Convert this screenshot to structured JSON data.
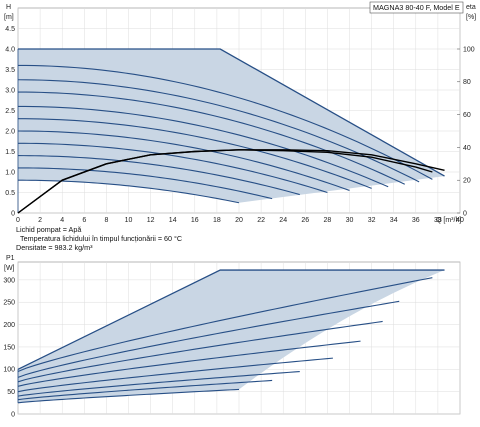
{
  "model_box": "MAGNA3 80-40 F, Model E",
  "notes": [
    "Lichid pompat = Apă",
    "Temperatura lichidului în timpul funcționării = 60 °C",
    "Densitate = 983.2  kg/m³"
  ],
  "chart_data": [
    {
      "type": "line",
      "title": "",
      "xlabel": "Q [m³/h]",
      "ylabel_top": "H",
      "ylabel_bottom": "[m]",
      "y2label_top": "eta",
      "y2label_bottom": "[%]",
      "xlim": [
        0,
        40
      ],
      "ylim": [
        0,
        5
      ],
      "y2lim": [
        0,
        125
      ],
      "x_ticks": [
        "0",
        "2",
        "4",
        "6",
        "8",
        "10",
        "12",
        "14",
        "16",
        "18",
        "20",
        "22",
        "24",
        "26",
        "28",
        "30",
        "32",
        "34",
        "36",
        "38",
        "40"
      ],
      "y_ticks": [
        "0",
        "0.5",
        "1.0",
        "1.5",
        "2.0",
        "2.5",
        "3.0",
        "3.5",
        "4.0",
        "4.5"
      ],
      "y2_ticks": [
        "0",
        "20",
        "40",
        "60",
        "80",
        "100"
      ],
      "grid": true,
      "operating_region": {
        "max_curve_q": [
          0,
          18.3,
          38.6
        ],
        "max_curve_h": [
          4.0,
          4.0,
          0.9
        ]
      },
      "speed_curves_h": [
        {
          "h0": 4.0,
          "qmax": 38.6,
          "hend": 0.9
        },
        {
          "h0": 3.6,
          "qmax": 37.5,
          "hend": 0.82
        },
        {
          "h0": 3.25,
          "qmax": 36.3,
          "hend": 0.76
        },
        {
          "h0": 2.95,
          "qmax": 35.0,
          "hend": 0.7
        },
        {
          "h0": 2.6,
          "qmax": 33.5,
          "hend": 0.64
        },
        {
          "h0": 2.3,
          "qmax": 32.0,
          "hend": 0.6
        },
        {
          "h0": 2.0,
          "qmax": 30.0,
          "hend": 0.55
        },
        {
          "h0": 1.7,
          "qmax": 28.0,
          "hend": 0.5
        },
        {
          "h0": 1.4,
          "qmax": 25.5,
          "hend": 0.45
        },
        {
          "h0": 1.1,
          "qmax": 23.0,
          "hend": 0.35
        },
        {
          "h0": 0.8,
          "qmax": 20.0,
          "hend": 0.25
        }
      ],
      "efficiency_curves": [
        {
          "q": [
            0,
            4,
            8,
            12,
            16,
            20,
            24,
            28,
            32,
            36,
            38.6
          ],
          "eta": [
            0,
            20,
            30,
            35.5,
            37.5,
            38.5,
            38.5,
            38,
            35.5,
            30,
            26
          ]
        },
        {
          "q": [
            0,
            4,
            8,
            12,
            16,
            20,
            24,
            28,
            32,
            36,
            37.5
          ],
          "eta": [
            0,
            20,
            30,
            35.5,
            37.5,
            38.5,
            38,
            37,
            34,
            28,
            25
          ]
        }
      ]
    },
    {
      "type": "line",
      "title": "",
      "ylabel_top": "P1",
      "ylabel_bottom": "[W]",
      "xlim": [
        0,
        40
      ],
      "ylim": [
        0,
        340
      ],
      "y_ticks": [
        "0",
        "50",
        "100",
        "150",
        "200",
        "250",
        "300"
      ],
      "grid": true,
      "max_curve_q": [
        0,
        18.3,
        38.6
      ],
      "max_curve_p": [
        100,
        322,
        322
      ],
      "power_curves": [
        {
          "p0": 95,
          "qmax": 37.5,
          "pend": 305
        },
        {
          "p0": 82,
          "qmax": 34.5,
          "pend": 252
        },
        {
          "p0": 72,
          "qmax": 33.0,
          "pend": 207
        },
        {
          "p0": 62,
          "qmax": 31.0,
          "pend": 163
        },
        {
          "p0": 50,
          "qmax": 28.5,
          "pend": 125
        },
        {
          "p0": 40,
          "qmax": 25.5,
          "pend": 95
        },
        {
          "p0": 32,
          "qmax": 23.0,
          "pend": 75
        },
        {
          "p0": 25,
          "qmax": 20.0,
          "pend": 55
        }
      ]
    }
  ]
}
